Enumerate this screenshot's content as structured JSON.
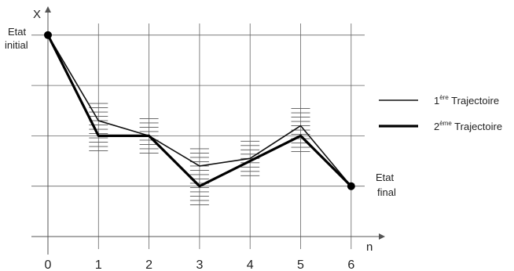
{
  "chart_data": {
    "type": "line",
    "x": [
      0,
      1,
      2,
      3,
      4,
      5,
      6
    ],
    "xlabel": "n",
    "ylabel": "X",
    "xlim": [
      0,
      6
    ],
    "grid": true,
    "legend_position": "right",
    "series": [
      {
        "name_base": "1",
        "name_sup": "ère",
        "name_tail": " Trajectoire",
        "color": "#111111",
        "weight": "thin",
        "values": [
          4.0,
          2.3,
          2.0,
          1.4,
          1.55,
          2.2,
          1.0
        ]
      },
      {
        "name_base": "2",
        "name_sup": "ème",
        "name_tail": " Trajectoire",
        "color": "#000000",
        "weight": "thick",
        "values": [
          4.0,
          2.0,
          2.0,
          1.0,
          1.5,
          2.0,
          1.0
        ]
      }
    ],
    "annotations": {
      "start_line1": "Etat",
      "start_line2": "initial",
      "end_line1": "Etat",
      "end_line2": "final"
    }
  }
}
